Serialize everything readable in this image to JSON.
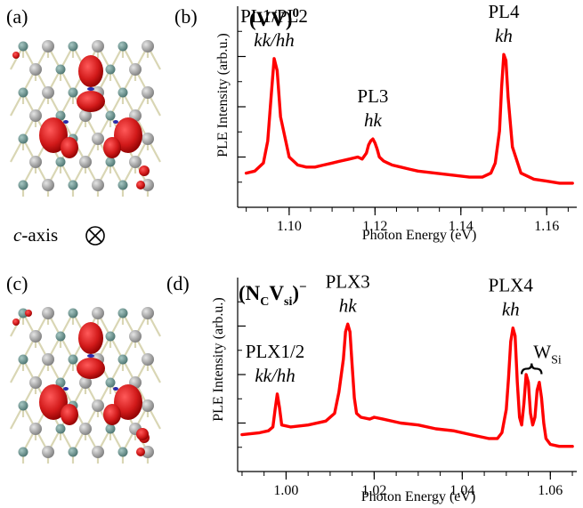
{
  "panel_labels": {
    "a": "(a)",
    "b": "(b)",
    "c": "(c)",
    "d": "(d)"
  },
  "caxis": {
    "italic": "c",
    "rest": "-axis",
    "symbol": "⊗"
  },
  "chart_data": [
    {
      "panel": "b",
      "type": "line",
      "title_base": "(VV)",
      "title_sup": "0",
      "xlabel": "Photon Energy (eV)",
      "ylabel": "PLE Intensity (arb.u.)",
      "xlim": [
        1.088,
        1.167
      ],
      "ylim": [
        0,
        1
      ],
      "xticks": [
        1.1,
        1.12,
        1.14,
        1.16
      ],
      "xtick_labels": [
        "1.10",
        "1.12",
        "1.14",
        "1.16"
      ],
      "yticks": [
        0.25,
        0.5,
        0.75
      ],
      "color": "#ff0000",
      "annotations": [
        {
          "x": 1.0965,
          "line1": "PL1/PL2",
          "line2": "kk/hh"
        },
        {
          "x": 1.1195,
          "line1": "PL3",
          "line2": "hk"
        },
        {
          "x": 1.15,
          "line1": "PL4",
          "line2": "kh"
        }
      ],
      "x": [
        1.09,
        1.092,
        1.094,
        1.095,
        1.0958,
        1.0965,
        1.0972,
        1.098,
        1.1,
        1.102,
        1.104,
        1.106,
        1.108,
        1.11,
        1.112,
        1.114,
        1.116,
        1.117,
        1.118,
        1.1185,
        1.119,
        1.1195,
        1.12,
        1.1205,
        1.121,
        1.122,
        1.123,
        1.124,
        1.126,
        1.128,
        1.13,
        1.134,
        1.138,
        1.142,
        1.145,
        1.147,
        1.148,
        1.149,
        1.1495,
        1.15,
        1.1505,
        1.151,
        1.152,
        1.154,
        1.157,
        1.16,
        1.163,
        1.166
      ],
      "y": [
        0.17,
        0.18,
        0.22,
        0.33,
        0.55,
        0.74,
        0.68,
        0.45,
        0.25,
        0.21,
        0.2,
        0.2,
        0.21,
        0.22,
        0.23,
        0.24,
        0.25,
        0.24,
        0.27,
        0.31,
        0.33,
        0.34,
        0.32,
        0.29,
        0.25,
        0.23,
        0.22,
        0.21,
        0.2,
        0.19,
        0.18,
        0.17,
        0.16,
        0.15,
        0.15,
        0.17,
        0.22,
        0.38,
        0.6,
        0.76,
        0.73,
        0.55,
        0.3,
        0.17,
        0.14,
        0.13,
        0.12,
        0.12
      ]
    },
    {
      "panel": "d",
      "type": "line",
      "title_base": "(N",
      "title_sub1": "C",
      "title_mid": "V",
      "title_sub2": "si",
      "title_tail": ")",
      "title_sup": "−",
      "xlabel": "Photon Energy (eV)",
      "ylabel": "PLE Intensity (arb.u.)",
      "xlim": [
        0.989,
        1.066
      ],
      "ylim": [
        0,
        1
      ],
      "xticks": [
        1.0,
        1.02,
        1.04,
        1.06
      ],
      "xtick_labels": [
        "1.00",
        "1.02",
        "1.04",
        "1.06"
      ],
      "yticks": [
        0.25,
        0.5,
        0.75
      ],
      "color": "#ff0000",
      "annotations": [
        {
          "x": 0.9975,
          "line1": "PLX1/2",
          "line2": "kk/hh"
        },
        {
          "x": 1.014,
          "line1": "PLX3",
          "line2": "hk"
        },
        {
          "x": 1.051,
          "line1": "PLX4",
          "line2": "kh"
        }
      ],
      "wsi": {
        "label": "W",
        "sub": "Si",
        "x_from": 1.0535,
        "x_to": 1.058
      },
      "x": [
        0.99,
        0.994,
        0.996,
        0.997,
        0.9975,
        0.998,
        0.9985,
        0.999,
        1.001,
        1.005,
        1.009,
        1.011,
        1.012,
        1.013,
        1.0135,
        1.014,
        1.0145,
        1.015,
        1.0155,
        1.016,
        1.017,
        1.019,
        1.02,
        1.022,
        1.026,
        1.03,
        1.034,
        1.038,
        1.042,
        1.046,
        1.048,
        1.049,
        1.05,
        1.0505,
        1.051,
        1.0515,
        1.052,
        1.0525,
        1.053,
        1.0535,
        1.054,
        1.0545,
        1.055,
        1.0555,
        1.056,
        1.0565,
        1.057,
        1.0575,
        1.058,
        1.0585,
        1.059,
        1.06,
        1.062,
        1.065
      ],
      "y": [
        0.19,
        0.2,
        0.21,
        0.23,
        0.32,
        0.4,
        0.33,
        0.24,
        0.23,
        0.24,
        0.26,
        0.3,
        0.41,
        0.58,
        0.72,
        0.76,
        0.72,
        0.55,
        0.38,
        0.3,
        0.28,
        0.27,
        0.28,
        0.27,
        0.25,
        0.24,
        0.22,
        0.21,
        0.19,
        0.17,
        0.17,
        0.2,
        0.32,
        0.48,
        0.67,
        0.74,
        0.7,
        0.46,
        0.28,
        0.24,
        0.35,
        0.5,
        0.46,
        0.3,
        0.24,
        0.28,
        0.42,
        0.46,
        0.38,
        0.25,
        0.17,
        0.14,
        0.13,
        0.13
      ]
    }
  ]
}
